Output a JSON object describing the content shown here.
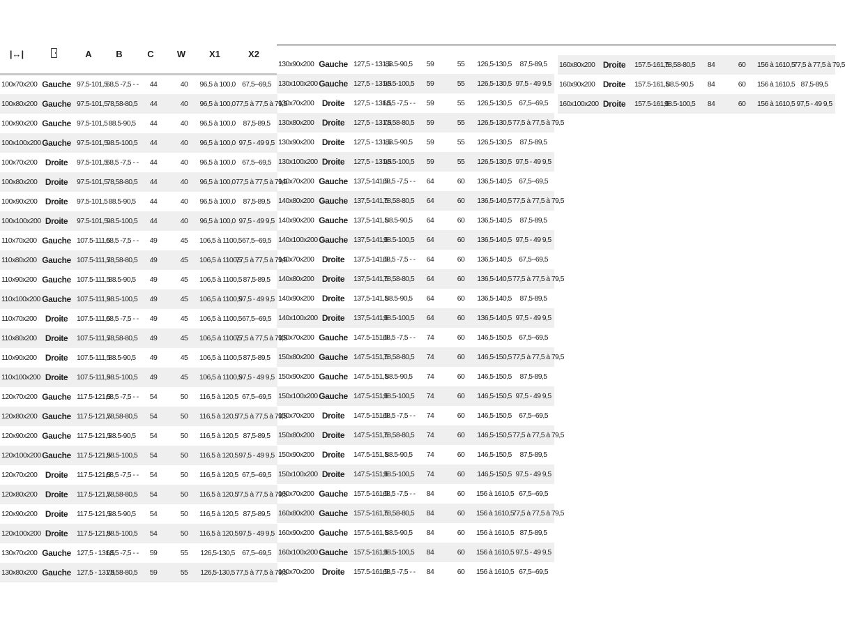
{
  "header": {
    "width_icon": "width-icon",
    "door_icon": "door-icon",
    "cols": [
      "A",
      "B",
      "C",
      "W",
      "X1",
      "X2"
    ]
  },
  "groups": [
    {
      "rows": [
        [
          "100x70x200",
          "Gauche",
          "97.5-101,5",
          "68,5 -7,5 - -",
          "44",
          "40",
          "96,5 à 100,0",
          "67,5--69,5"
        ],
        [
          "100x80x200",
          "Gauche",
          "97.5-101,5",
          "78,58-80,5",
          "44",
          "40",
          "96,5 à 100,0",
          "77,5 à 77,5 à 79,5"
        ],
        [
          "100x90x200",
          "Gauche",
          "97.5-101,5",
          "88.5-90,5",
          "44",
          "40",
          "96,5 à 100,0",
          "87,5-89,5"
        ],
        [
          "100x100x200",
          "Gauche",
          "97.5-101,5",
          "98.5-100,5",
          "44",
          "40",
          "96,5 à 100,0",
          "97,5 - 49 9,5"
        ],
        [
          "100x70x200",
          "Droite",
          "97.5-101,5",
          "68,5 -7,5 - -",
          "44",
          "40",
          "96,5 à 100,0",
          "67,5--69,5"
        ],
        [
          "100x80x200",
          "Droite",
          "97.5-101,5",
          "78,58-80,5",
          "44",
          "40",
          "96,5 à 100,0",
          "77,5 à 77,5 à 79,5"
        ],
        [
          "100x90x200",
          "Droite",
          "97.5-101,5",
          "88.5-90,5",
          "44",
          "40",
          "96,5 à 100,0",
          "87,5-89,5"
        ],
        [
          "100x100x200",
          "Droite",
          "97.5-101,5",
          "98.5-100,5",
          "44",
          "40",
          "96,5 à 100,0",
          "97,5 - 49 9,5"
        ],
        [
          "110x70x200",
          "Gauche",
          "107.5-111,5",
          "68,5 -7,5 - -",
          "49",
          "45",
          "106,5 à 1100,5",
          "67,5--69,5"
        ],
        [
          "110x80x200",
          "Gauche",
          "107.5-111,5",
          "78,58-80,5",
          "49",
          "45",
          "106,5 à 1100,5",
          "77,5 à 77,5 à 79,5"
        ],
        [
          "110x90x200",
          "Gauche",
          "107.5-111,5",
          "88.5-90,5",
          "49",
          "45",
          "106,5 à 1100,5",
          "87,5-89,5"
        ],
        [
          "110x100x200",
          "Gauche",
          "107.5-111,5",
          "98.5-100,5",
          "49",
          "45",
          "106,5 à 1100,5",
          "97,5 - 49 9,5"
        ],
        [
          "110x70x200",
          "Droite",
          "107.5-111,5",
          "68,5 -7,5 - -",
          "49",
          "45",
          "106,5 à 1100,5",
          "67,5--69,5"
        ],
        [
          "110x80x200",
          "Droite",
          "107.5-111,5",
          "78,58-80,5",
          "49",
          "45",
          "106,5 à 1100,5",
          "77,5 à 77,5 à 79,5"
        ],
        [
          "110x90x200",
          "Droite",
          "107.5-111,5",
          "88.5-90,5",
          "49",
          "45",
          "106,5 à 1100,5",
          "87,5-89,5"
        ],
        [
          "110x100x200",
          "Droite",
          "107.5-111,5",
          "98.5-100,5",
          "49",
          "45",
          "106,5 à 1100,5",
          "97,5 - 49 9,5"
        ],
        [
          "120x70x200",
          "Gauche",
          "117.5-121,5",
          "68,5 -7,5 - -",
          "54",
          "50",
          "116,5 à 120,5",
          "67,5--69,5"
        ],
        [
          "120x80x200",
          "Gauche",
          "117.5-121,5",
          "78,58-80,5",
          "54",
          "50",
          "116,5 à 120,5",
          "77,5 à 77,5 à 79,5"
        ],
        [
          "120x90x200",
          "Gauche",
          "117.5-121,5",
          "88.5-90,5",
          "54",
          "50",
          "116,5 à 120,5",
          "87,5-89,5"
        ],
        [
          "120x100x200",
          "Gauche",
          "117.5-121,5",
          "98.5-100,5",
          "54",
          "50",
          "116,5 à 120,5",
          "97,5 - 49 9,5"
        ],
        [
          "120x70x200",
          "Droite",
          "117.5-121,5",
          "68,5 -7,5 - -",
          "54",
          "50",
          "116,5 à 120,5",
          "67,5--69,5"
        ],
        [
          "120x80x200",
          "Droite",
          "117.5-121,5",
          "78,58-80,5",
          "54",
          "50",
          "116,5 à 120,5",
          "77,5 à 77,5 à 79,5"
        ],
        [
          "120x90x200",
          "Droite",
          "117.5-121,5",
          "88.5-90,5",
          "54",
          "50",
          "116,5 à 120,5",
          "87,5-89,5"
        ],
        [
          "120x100x200",
          "Droite",
          "117.5-121,5",
          "98.5-100,5",
          "54",
          "50",
          "116,5 à 120,5",
          "97,5 - 49 9,5"
        ],
        [
          "130x70x200",
          "Gauche",
          "127,5 - 131,5",
          "68,5 -7,5 - -",
          "59",
          "55",
          "126,5-130,5",
          "67,5--69,5"
        ],
        [
          "130x80x200",
          "Gauche",
          "127,5 - 131,5",
          "78,58-80,5",
          "59",
          "55",
          "126,5-130,5",
          "77,5 à 77,5 à 79,5"
        ]
      ]
    },
    {
      "rows": [
        [
          "130x90x200",
          "Gauche",
          "127,5 - 131,5",
          "88.5-90,5",
          "59",
          "55",
          "126,5-130,5",
          "87,5-89,5"
        ],
        [
          "130x100x200",
          "Gauche",
          "127,5 - 131,5",
          "98.5-100,5",
          "59",
          "55",
          "126,5-130,5",
          "97,5 - 49 9,5"
        ],
        [
          "130x70x200",
          "Droite",
          "127,5 - 131,5",
          "68,5 -7,5 - -",
          "59",
          "55",
          "126,5-130,5",
          "67,5--69,5"
        ],
        [
          "130x80x200",
          "Droite",
          "127,5 - 131,5",
          "78,58-80,5",
          "59",
          "55",
          "126,5-130,5",
          "77,5 à 77,5 à 79,5"
        ],
        [
          "130x90x200",
          "Droite",
          "127,5 - 131,5",
          "88.5-90,5",
          "59",
          "55",
          "126,5-130,5",
          "87,5-89,5"
        ],
        [
          "130x100x200",
          "Droite",
          "127,5 - 131,5",
          "98.5-100,5",
          "59",
          "55",
          "126,5-130,5",
          "97,5 - 49 9,5"
        ],
        [
          "140x70x200",
          "Gauche",
          "137,5-141,5",
          "68,5 -7,5 - -",
          "64",
          "60",
          "136,5-140,5",
          "67,5--69,5"
        ],
        [
          "140x80x200",
          "Gauche",
          "137,5-141,5",
          "78,58-80,5",
          "64",
          "60",
          "136,5-140,5",
          "77,5 à 77,5 à 79,5"
        ],
        [
          "140x90x200",
          "Gauche",
          "137,5-141,5",
          "88.5-90,5",
          "64",
          "60",
          "136,5-140,5",
          "87,5-89,5"
        ],
        [
          "140x100x200",
          "Gauche",
          "137,5-141,5",
          "98.5-100,5",
          "64",
          "60",
          "136,5-140,5",
          "97,5 - 49 9,5"
        ],
        [
          "140x70x200",
          "Droite",
          "137,5-141,5",
          "68,5 -7,5 - -",
          "64",
          "60",
          "136,5-140,5",
          "67,5--69,5"
        ],
        [
          "140x80x200",
          "Droite",
          "137,5-141,5",
          "78,58-80,5",
          "64",
          "60",
          "136,5-140,5",
          "77,5 à 77,5 à 79,5"
        ],
        [
          "140x90x200",
          "Droite",
          "137,5-141,5",
          "88.5-90,5",
          "64",
          "60",
          "136,5-140,5",
          "87,5-89,5"
        ],
        [
          "140x100x200",
          "Droite",
          "137,5-141,5",
          "98.5-100,5",
          "64",
          "60",
          "136,5-140,5",
          "97,5 - 49 9,5"
        ],
        [
          "150x70x200",
          "Gauche",
          "147.5-151,5",
          "68,5 -7,5 - -",
          "74",
          "60",
          "146,5-150,5",
          "67,5--69,5"
        ],
        [
          "150x80x200",
          "Gauche",
          "147.5-151,5",
          "78,58-80,5",
          "74",
          "60",
          "146,5-150,5",
          "77,5 à 77,5 à 79,5"
        ],
        [
          "150x90x200",
          "Gauche",
          "147.5-151,5",
          "88.5-90,5",
          "74",
          "60",
          "146,5-150,5",
          "87,5-89,5"
        ],
        [
          "150x100x200",
          "Gauche",
          "147.5-151,5",
          "98.5-100,5",
          "74",
          "60",
          "146,5-150,5",
          "97,5 - 49 9,5"
        ],
        [
          "150x70x200",
          "Droite",
          "147.5-151,5",
          "68,5 -7,5 - -",
          "74",
          "60",
          "146,5-150,5",
          "67,5--69,5"
        ],
        [
          "150x80x200",
          "Droite",
          "147.5-151,5",
          "78,58-80,5",
          "74",
          "60",
          "146,5-150,5",
          "77,5 à 77,5 à 79,5"
        ],
        [
          "150x90x200",
          "Droite",
          "147.5-151,5",
          "88.5-90,5",
          "74",
          "60",
          "146,5-150,5",
          "87,5-89,5"
        ],
        [
          "150x100x200",
          "Droite",
          "147.5-151,5",
          "98.5-100,5",
          "74",
          "60",
          "146,5-150,5",
          "97,5 - 49 9,5"
        ],
        [
          "160x70x200",
          "Gauche",
          "157.5-161,5",
          "68,5 -7,5 - -",
          "84",
          "60",
          "156 à 1610,5",
          "67,5--69,5"
        ],
        [
          "160x80x200",
          "Gauche",
          "157.5-161,5",
          "78,58-80,5",
          "84",
          "60",
          "156 à 1610,5",
          "77,5 à 77,5 à 79,5"
        ],
        [
          "160x90x200",
          "Gauche",
          "157.5-161,5",
          "88.5-90,5",
          "84",
          "60",
          "156 à 1610,5",
          "87,5-89,5"
        ],
        [
          "160x100x200",
          "Gauche",
          "157.5-161,5",
          "98.5-100,5",
          "84",
          "60",
          "156 à 1610,5",
          "97,5 - 49 9,5"
        ],
        [
          "160x70x200",
          "Droite",
          "157.5-161,5",
          "68,5 -7,5 - -",
          "84",
          "60",
          "156 à 1610,5",
          "67,5--69,5"
        ]
      ]
    },
    {
      "rows": [
        [
          "160x80x200",
          "Droite",
          "157.5-161,5",
          "78,58-80,5",
          "84",
          "60",
          "156 à 1610,5",
          "77,5 à 77,5 à 79,5"
        ],
        [
          "160x90x200",
          "Droite",
          "157.5-161,5",
          "88.5-90,5",
          "84",
          "60",
          "156 à 1610,5",
          "87,5-89,5"
        ],
        [
          "160x100x200",
          "Droite",
          "157.5-161,5",
          "98.5-100,5",
          "84",
          "60",
          "156 à 1610,5",
          "97,5 - 49 9,5"
        ]
      ]
    }
  ]
}
